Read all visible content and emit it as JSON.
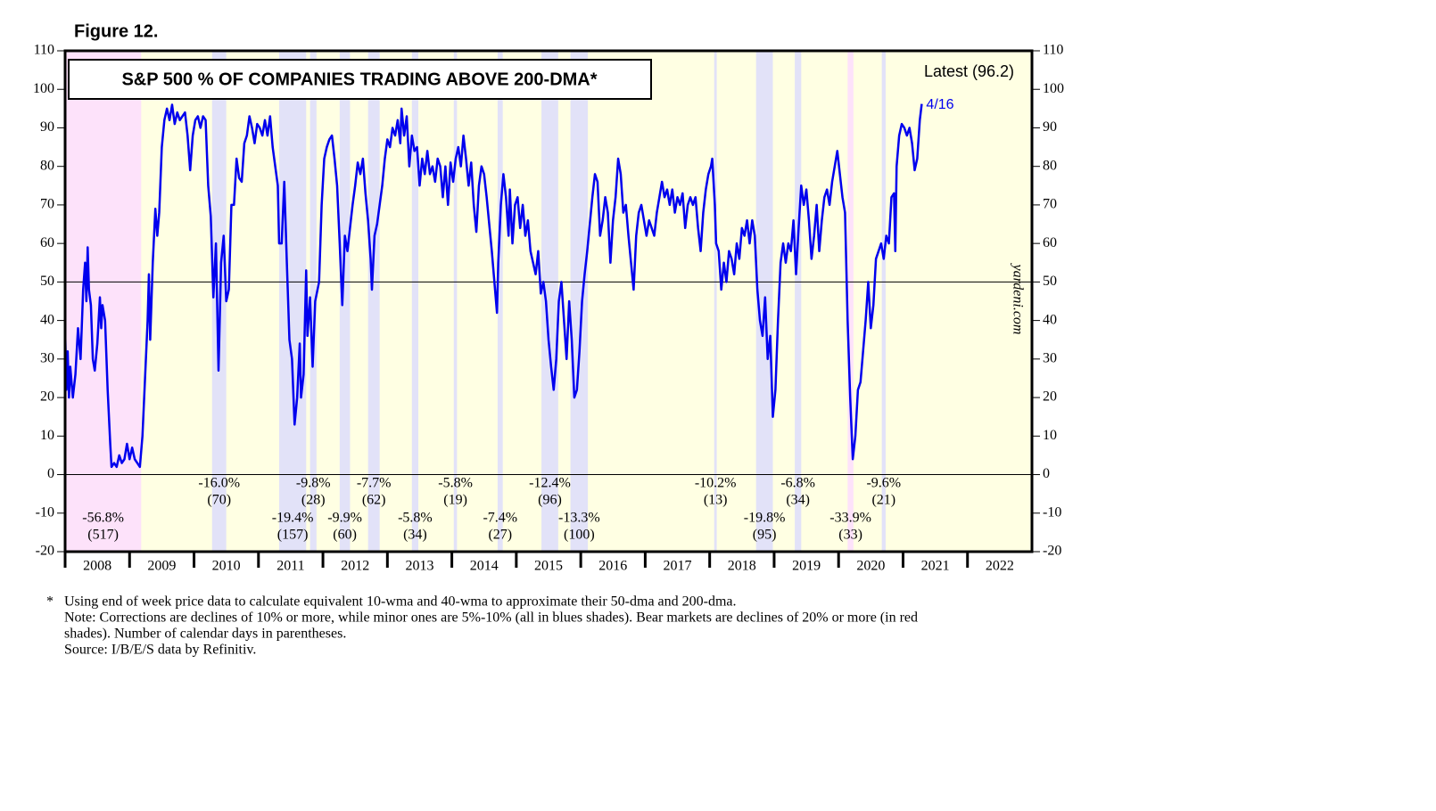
{
  "chart_data": {
    "type": "line",
    "figure_label": "Figure 12.",
    "title": "S&P 500 % OF COMPANIES TRADING ABOVE 200-DMA*",
    "latest_label": "Latest (96.2)",
    "last_point_label": "4/16",
    "watermark": "yardeni.com",
    "note_marker": "*",
    "notes": [
      "Using end of week price data to calculate equivalent 10-wma and 40-wma to approximate their 50-dma and 200-dma.",
      "Note: Corrections are declines of 10% or more, while minor ones are 5%-10% (all in blues shades). Bear markets are declines of 20% or more (in red",
      "shades). Number of calendar days in parentheses.",
      "Source: I/B/E/S data by Refinitiv."
    ],
    "xlim": [
      2008,
      2023
    ],
    "xticks": [
      {
        "value": 2008,
        "label": "2008"
      },
      {
        "value": 2009,
        "label": "2009"
      },
      {
        "value": 2010,
        "label": "2010"
      },
      {
        "value": 2011,
        "label": "2011"
      },
      {
        "value": 2012,
        "label": "2012"
      },
      {
        "value": 2013,
        "label": "2013"
      },
      {
        "value": 2014,
        "label": "2014"
      },
      {
        "value": 2015,
        "label": "2015"
      },
      {
        "value": 2016,
        "label": "2016"
      },
      {
        "value": 2017,
        "label": "2017"
      },
      {
        "value": 2018,
        "label": "2018"
      },
      {
        "value": 2019,
        "label": "2019"
      },
      {
        "value": 2020,
        "label": "2020"
      },
      {
        "value": 2021,
        "label": "2021"
      },
      {
        "value": 2022,
        "label": "2022"
      }
    ],
    "ylim": [
      -20,
      110
    ],
    "yticks": [
      -20,
      -10,
      0,
      10,
      20,
      30,
      40,
      50,
      60,
      70,
      80,
      90,
      100,
      110
    ],
    "reference_lines": [
      0,
      50
    ],
    "background_color": "#ffffe3",
    "period_colors": {
      "bear": "#fde2fa",
      "correction": "#e2e2f8"
    },
    "periods": [
      {
        "start": 2008.0,
        "end": 2009.18,
        "kind": "bear",
        "change": -56.8,
        "change_label": "-56.8%",
        "days": 517,
        "days_label": "(517)"
      },
      {
        "start": 2010.28,
        "end": 2010.5,
        "kind": "correction",
        "change": -16.0,
        "change_label": "-16.0%",
        "days": 70,
        "days_label": "(70)"
      },
      {
        "start": 2011.32,
        "end": 2011.74,
        "kind": "correction",
        "change": -19.4,
        "change_label": "-19.4%",
        "days": 157,
        "days_label": "(157)"
      },
      {
        "start": 2011.8,
        "end": 2011.9,
        "kind": "correction",
        "change": -9.8,
        "change_label": "-9.8%",
        "days": 28,
        "days_label": "(28)"
      },
      {
        "start": 2012.26,
        "end": 2012.42,
        "kind": "correction",
        "change": -9.9,
        "change_label": "-9.9%",
        "days": 60,
        "days_label": "(60)"
      },
      {
        "start": 2012.7,
        "end": 2012.88,
        "kind": "correction",
        "change": -7.7,
        "change_label": "-7.7%",
        "days": 62,
        "days_label": "(62)"
      },
      {
        "start": 2013.38,
        "end": 2013.48,
        "kind": "correction",
        "change": -5.8,
        "change_label": "-5.8%",
        "days": 34,
        "days_label": "(34)"
      },
      {
        "start": 2014.03,
        "end": 2014.08,
        "kind": "correction",
        "change": -5.8,
        "change_label": "-5.8%",
        "days": 19,
        "days_label": "(19)"
      },
      {
        "start": 2014.71,
        "end": 2014.79,
        "kind": "correction",
        "change": -7.4,
        "change_label": "-7.4%",
        "days": 27,
        "days_label": "(27)"
      },
      {
        "start": 2015.39,
        "end": 2015.65,
        "kind": "correction",
        "change": -12.4,
        "change_label": "-12.4%",
        "days": 96,
        "days_label": "(96)"
      },
      {
        "start": 2015.84,
        "end": 2016.11,
        "kind": "correction",
        "change": -13.3,
        "change_label": "-13.3%",
        "days": 100,
        "days_label": "(100)"
      },
      {
        "start": 2018.07,
        "end": 2018.11,
        "kind": "correction",
        "change": -10.2,
        "change_label": "-10.2%",
        "days": 13,
        "days_label": "(13)"
      },
      {
        "start": 2018.72,
        "end": 2018.98,
        "kind": "correction",
        "change": -19.8,
        "change_label": "-19.8%",
        "days": 95,
        "days_label": "(95)"
      },
      {
        "start": 2019.32,
        "end": 2019.42,
        "kind": "correction",
        "change": -6.8,
        "change_label": "-6.8%",
        "days": 34,
        "days_label": "(34)"
      },
      {
        "start": 2020.14,
        "end": 2020.23,
        "kind": "bear",
        "change": -33.9,
        "change_label": "-33.9%",
        "days": 33,
        "days_label": "(33)"
      },
      {
        "start": 2020.67,
        "end": 2020.73,
        "kind": "correction",
        "change": -9.6,
        "change_label": "-9.6%",
        "days": 21,
        "days_label": "(21)"
      }
    ],
    "color": "#0000ee",
    "x": [
      2008.0,
      2008.02,
      2008.04,
      2008.06,
      2008.08,
      2008.12,
      2008.16,
      2008.2,
      2008.24,
      2008.28,
      2008.31,
      2008.33,
      2008.35,
      2008.37,
      2008.4,
      2008.43,
      2008.46,
      2008.5,
      2008.54,
      2008.56,
      2008.58,
      2008.62,
      2008.66,
      2008.7,
      2008.72,
      2008.76,
      2008.8,
      2008.84,
      2008.88,
      2008.92,
      2008.96,
      2009.0,
      2009.04,
      2009.08,
      2009.12,
      2009.16,
      2009.2,
      2009.24,
      2009.28,
      2009.3,
      2009.32,
      2009.36,
      2009.4,
      2009.43,
      2009.46,
      2009.5,
      2009.54,
      2009.58,
      2009.62,
      2009.66,
      2009.7,
      2009.74,
      2009.78,
      2009.82,
      2009.86,
      2009.9,
      2009.94,
      2009.98,
      2010.02,
      2010.06,
      2010.1,
      2010.14,
      2010.18,
      2010.22,
      2010.26,
      2010.3,
      2010.34,
      2010.38,
      2010.42,
      2010.46,
      2010.5,
      2010.54,
      2010.58,
      2010.62,
      2010.66,
      2010.7,
      2010.74,
      2010.78,
      2010.82,
      2010.86,
      2010.9,
      2010.94,
      2010.98,
      2011.02,
      2011.06,
      2011.1,
      2011.14,
      2011.18,
      2011.22,
      2011.26,
      2011.3,
      2011.32,
      2011.36,
      2011.4,
      2011.44,
      2011.48,
      2011.52,
      2011.56,
      2011.6,
      2011.64,
      2011.66,
      2011.7,
      2011.74,
      2011.76,
      2011.8,
      2011.84,
      2011.88,
      2011.94,
      2011.98,
      2012.02,
      2012.06,
      2012.1,
      2012.14,
      2012.18,
      2012.22,
      2012.26,
      2012.3,
      2012.34,
      2012.38,
      2012.42,
      2012.46,
      2012.5,
      2012.54,
      2012.58,
      2012.62,
      2012.66,
      2012.7,
      2012.74,
      2012.76,
      2012.8,
      2012.84,
      2012.88,
      2012.92,
      2012.96,
      2013.0,
      2013.04,
      2013.08,
      2013.12,
      2013.16,
      2013.2,
      2013.22,
      2013.26,
      2013.3,
      2013.34,
      2013.38,
      2013.42,
      2013.46,
      2013.5,
      2013.54,
      2013.58,
      2013.62,
      2013.66,
      2013.7,
      2013.74,
      2013.78,
      2013.82,
      2013.86,
      2013.9,
      2013.94,
      2013.98,
      2014.02,
      2014.06,
      2014.1,
      2014.14,
      2014.18,
      2014.22,
      2014.26,
      2014.3,
      2014.34,
      2014.38,
      2014.42,
      2014.46,
      2014.5,
      2014.54,
      2014.58,
      2014.62,
      2014.66,
      2014.7,
      2014.72,
      2014.76,
      2014.8,
      2014.84,
      2014.88,
      2014.9,
      2014.94,
      2014.98,
      2015.02,
      2015.06,
      2015.1,
      2015.14,
      2015.18,
      2015.22,
      2015.26,
      2015.3,
      2015.34,
      2015.38,
      2015.42,
      2015.46,
      2015.5,
      2015.54,
      2015.58,
      2015.62,
      2015.66,
      2015.7,
      2015.74,
      2015.78,
      2015.82,
      2015.86,
      2015.9,
      2015.94,
      2015.98,
      2016.02,
      2016.06,
      2016.1,
      2016.14,
      2016.18,
      2016.22,
      2016.26,
      2016.3,
      2016.34,
      2016.38,
      2016.42,
      2016.46,
      2016.5,
      2016.54,
      2016.58,
      2016.62,
      2016.66,
      2016.7,
      2016.74,
      2016.78,
      2016.82,
      2016.86,
      2016.9,
      2016.94,
      2016.98,
      2017.02,
      2017.06,
      2017.1,
      2017.14,
      2017.18,
      2017.22,
      2017.26,
      2017.3,
      2017.34,
      2017.38,
      2017.42,
      2017.46,
      2017.5,
      2017.54,
      2017.58,
      2017.62,
      2017.66,
      2017.7,
      2017.74,
      2017.78,
      2017.82,
      2017.86,
      2017.9,
      2017.94,
      2017.98,
      2018.02,
      2018.04,
      2018.08,
      2018.1,
      2018.14,
      2018.18,
      2018.22,
      2018.26,
      2018.3,
      2018.34,
      2018.38,
      2018.42,
      2018.46,
      2018.5,
      2018.54,
      2018.58,
      2018.62,
      2018.66,
      2018.7,
      2018.74,
      2018.78,
      2018.82,
      2018.86,
      2018.9,
      2018.94,
      2018.98,
      2019.02,
      2019.06,
      2019.1,
      2019.14,
      2019.18,
      2019.22,
      2019.26,
      2019.3,
      2019.34,
      2019.38,
      2019.42,
      2019.46,
      2019.5,
      2019.54,
      2019.58,
      2019.62,
      2019.66,
      2019.7,
      2019.74,
      2019.78,
      2019.82,
      2019.86,
      2019.9,
      2019.94,
      2019.98,
      2020.02,
      2020.06,
      2020.1,
      2020.14,
      2020.18,
      2020.22,
      2020.26,
      2020.3,
      2020.34,
      2020.38,
      2020.42,
      2020.46,
      2020.5,
      2020.54,
      2020.58,
      2020.62,
      2020.66,
      2020.7,
      2020.74,
      2020.78,
      2020.82,
      2020.86,
      2020.88,
      2020.9,
      2020.94,
      2020.98,
      2021.02,
      2021.06,
      2021.1,
      2021.14,
      2021.18,
      2021.22,
      2021.26,
      2021.29
    ],
    "values": [
      38,
      22,
      32,
      20,
      28,
      20,
      26,
      38,
      30,
      48,
      55,
      45,
      59,
      48,
      44,
      30,
      27,
      34,
      46,
      38,
      44,
      40,
      22,
      8,
      2,
      3,
      2,
      5,
      3,
      4,
      8,
      4,
      7,
      4,
      3,
      2,
      10,
      25,
      40,
      52,
      35,
      55,
      69,
      62,
      68,
      85,
      92,
      95,
      92,
      96,
      91,
      94,
      92,
      93,
      94,
      88,
      79,
      88,
      92,
      93,
      90,
      93,
      92,
      75,
      67,
      46,
      60,
      27,
      55,
      62,
      45,
      48,
      70,
      70,
      82,
      77,
      76,
      86,
      88,
      93,
      90,
      86,
      91,
      90,
      88,
      92,
      88,
      93,
      85,
      80,
      75,
      60,
      60,
      76,
      55,
      35,
      30,
      13,
      20,
      34,
      20,
      26,
      53,
      36,
      46,
      28,
      45,
      50,
      70,
      82,
      85,
      87,
      88,
      82,
      75,
      60,
      44,
      62,
      58,
      64,
      70,
      75,
      81,
      78,
      82,
      73,
      66,
      56,
      48,
      62,
      65,
      70,
      75,
      82,
      87,
      85,
      90,
      88,
      92,
      86,
      95,
      88,
      93,
      80,
      88,
      84,
      85,
      75,
      82,
      78,
      84,
      78,
      80,
      76,
      82,
      80,
      72,
      80,
      70,
      81,
      76,
      82,
      85,
      80,
      88,
      82,
      75,
      81,
      70,
      63,
      75,
      80,
      78,
      72,
      65,
      58,
      50,
      42,
      55,
      70,
      78,
      72,
      62,
      74,
      60,
      70,
      72,
      64,
      70,
      62,
      66,
      58,
      55,
      52,
      58,
      47,
      50,
      45,
      35,
      28,
      22,
      30,
      45,
      50,
      40,
      30,
      45,
      35,
      20,
      22,
      32,
      45,
      52,
      58,
      65,
      72,
      78,
      76,
      62,
      66,
      72,
      68,
      55,
      66,
      72,
      82,
      78,
      68,
      70,
      62,
      55,
      48,
      62,
      68,
      70,
      66,
      62,
      66,
      64,
      62,
      68,
      72,
      76,
      72,
      74,
      70,
      74,
      68,
      72,
      70,
      73,
      64,
      70,
      72,
      70,
      72,
      64,
      58,
      68,
      74,
      78,
      80,
      82,
      70,
      60,
      58,
      48,
      55,
      50,
      58,
      56,
      52,
      60,
      56,
      64,
      62,
      66,
      60,
      66,
      62,
      48,
      40,
      36,
      46,
      30,
      36,
      15,
      22,
      40,
      55,
      60,
      55,
      60,
      58,
      66,
      52,
      64,
      75,
      70,
      74,
      66,
      56,
      62,
      70,
      58,
      66,
      72,
      74,
      70,
      76,
      80,
      84,
      78,
      72,
      68,
      40,
      20,
      4,
      10,
      22,
      24,
      32,
      40,
      50,
      38,
      44,
      56,
      58,
      60,
      56,
      62,
      60,
      72,
      73,
      58,
      80,
      88,
      91,
      90,
      88,
      90,
      86,
      79,
      82,
      92,
      96.2
    ]
  }
}
